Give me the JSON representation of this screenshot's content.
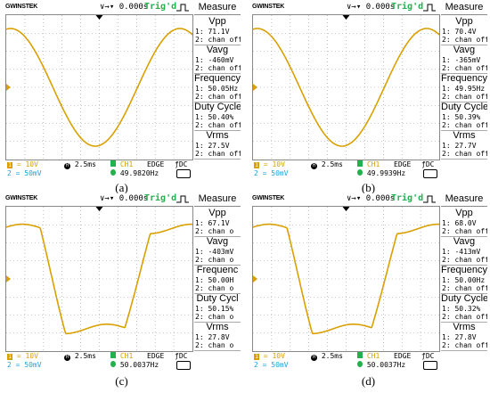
{
  "panels": [
    {
      "caption": "(a)",
      "brand": "GWINSTEK",
      "time_offset": "0.000s",
      "trigger_status": "Trig'd",
      "measure": {
        "title": "Measure",
        "items": [
          {
            "name": "Vpp",
            "ch1": "1: 71.1V",
            "ch2": "2: chan off"
          },
          {
            "name": "Vavg",
            "ch1": "1: -460mV",
            "ch2": "2: chan off"
          },
          {
            "name": "Frequency",
            "ch1": "1: 50.05Hz",
            "ch2": "2: chan off"
          },
          {
            "name": "Duty Cycle",
            "ch1": "1: 50.40%",
            "ch2": "2: chan off"
          },
          {
            "name": "Vrms",
            "ch1": "1: 27.5V",
            "ch2": "2: chan off"
          }
        ]
      },
      "ch1_scale": "= 10V",
      "ch2_scale": "= 50mV",
      "timebase": "2.5ms",
      "trigger_source": "CH1",
      "trigger_type": "EDGE",
      "coupling": "DC",
      "trigger_freq": "49.9820Hz",
      "waveform": "sine"
    },
    {
      "caption": "(b)",
      "brand": "GWINSTEK",
      "time_offset": "0.000s",
      "trigger_status": "Trig'd",
      "measure": {
        "title": "Measure",
        "items": [
          {
            "name": "Vpp",
            "ch1": "1: 70.4V",
            "ch2": "2: chan off"
          },
          {
            "name": "Vavg",
            "ch1": "1: -365mV",
            "ch2": "2: chan off"
          },
          {
            "name": "Frequency",
            "ch1": "1: 49.95Hz",
            "ch2": "2: chan off"
          },
          {
            "name": "Duty Cycle",
            "ch1": "1: 50.39%",
            "ch2": "2: chan off"
          },
          {
            "name": "Vrms",
            "ch1": "1: 27.7V",
            "ch2": "2: chan off"
          }
        ]
      },
      "ch1_scale": "= 10V",
      "ch2_scale": "= 50mV",
      "timebase": "2.5ms",
      "trigger_source": "CH1",
      "trigger_type": "EDGE",
      "coupling": "DC",
      "trigger_freq": "49.9939Hz",
      "waveform": "sine"
    },
    {
      "caption": "(c)",
      "brand": "GWINSTEK",
      "time_offset": "0.000s",
      "trigger_status": "Trig'd",
      "measure": {
        "title": "Measure",
        "items": [
          {
            "name": "Vpp",
            "ch1": "1: 67.1V",
            "ch2": "2: chan o"
          },
          {
            "name": "Vavg",
            "ch1": "1: -403mV",
            "ch2": "2: chan o"
          },
          {
            "name": "Frequenc",
            "ch1": "1: 50.00H",
            "ch2": "2: chan o"
          },
          {
            "name": "Duty Cycl",
            "ch1": "1: 50.15%",
            "ch2": "2: chan o"
          },
          {
            "name": "Vrms",
            "ch1": "1: 27.8V",
            "ch2": "2: chan o"
          }
        ]
      },
      "ch1_scale": "= 10V",
      "ch2_scale": "= 50mV",
      "timebase": "2.5ms",
      "trigger_source": "CH1",
      "trigger_type": "EDGE",
      "coupling": "DC",
      "trigger_freq": "50.0037Hz",
      "waveform": "square"
    },
    {
      "caption": "(d)",
      "brand": "GWINSTEK",
      "time_offset": "0.000s",
      "trigger_status": "Trig'd",
      "measure": {
        "title": "Measure",
        "items": [
          {
            "name": "Vpp",
            "ch1": "1: 68.0V",
            "ch2": "2: chan off"
          },
          {
            "name": "Vavg",
            "ch1": "1: -413mV",
            "ch2": "2: chan off"
          },
          {
            "name": "Frequency",
            "ch1": "1: 50.00Hz",
            "ch2": "2: chan off"
          },
          {
            "name": "Duty Cycle",
            "ch1": "1: 50.32%",
            "ch2": "2: chan off"
          },
          {
            "name": "Vrms",
            "ch1": "1: 27.8V",
            "ch2": "2: chan off"
          }
        ]
      },
      "ch1_scale": "= 10V",
      "ch2_scale": "= 50mV",
      "timebase": "2.5ms",
      "trigger_source": "CH1",
      "trigger_type": "EDGE",
      "coupling": "DC",
      "trigger_freq": "50.0037Hz",
      "waveform": "square"
    }
  ],
  "colors": {
    "ch1": "#d9a000",
    "ch2": "#19a5d6",
    "trig": "#22b14c",
    "grid": "#9a9a9a"
  }
}
